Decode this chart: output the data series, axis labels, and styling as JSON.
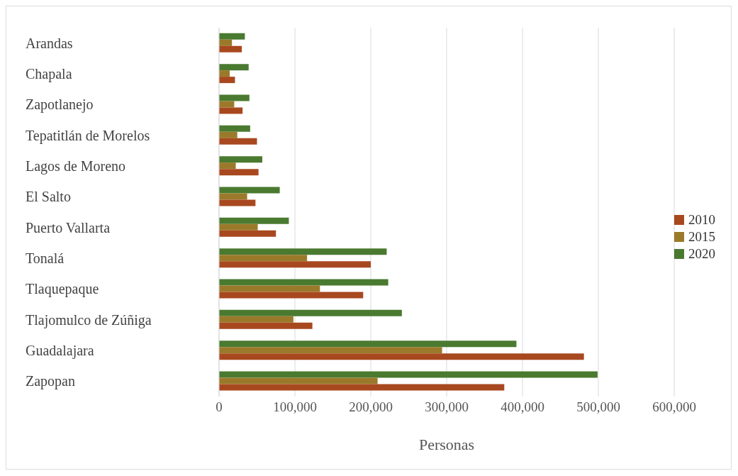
{
  "chart_data": {
    "type": "bar",
    "orientation": "horizontal",
    "xlabel": "Personas",
    "categories": [
      "Arandas",
      "Chapala",
      "Zapotlanejo",
      "Tepatitlán de Morelos",
      "Lagos de Moreno",
      "El Salto",
      "Puerto Vallarta",
      "Tonalá",
      "Tlaquepaque",
      "Tlajomulco de Zúñiga",
      "Guadalajara",
      "Zapopan"
    ],
    "series": [
      {
        "name": "2010",
        "color": "#a8481f",
        "values": [
          30000,
          21000,
          31000,
          50000,
          52000,
          48000,
          75000,
          200000,
          190000,
          123000,
          481000,
          376000
        ]
      },
      {
        "name": "2015",
        "color": "#9a7a2a",
        "values": [
          17000,
          14000,
          20000,
          24000,
          22000,
          37000,
          51000,
          116000,
          133000,
          98000,
          294000,
          209000
        ]
      },
      {
        "name": "2020",
        "color": "#4a7a30",
        "values": [
          34000,
          39000,
          40000,
          41000,
          57000,
          80000,
          92000,
          221000,
          223000,
          241000,
          392000,
          499000
        ]
      }
    ],
    "xlim": [
      0,
      600000
    ],
    "xticks": [
      0,
      {
        "value": 100000,
        "label": "100,000"
      },
      {
        "value": 200000,
        "label": "200,000"
      },
      {
        "value": 300000,
        "label": "300,000"
      },
      {
        "value": 400000,
        "label": "400,000"
      },
      {
        "value": 500000,
        "label": "500,000"
      },
      {
        "value": 600000,
        "label": "600,000"
      }
    ],
    "grid": "x",
    "legend": "right"
  }
}
